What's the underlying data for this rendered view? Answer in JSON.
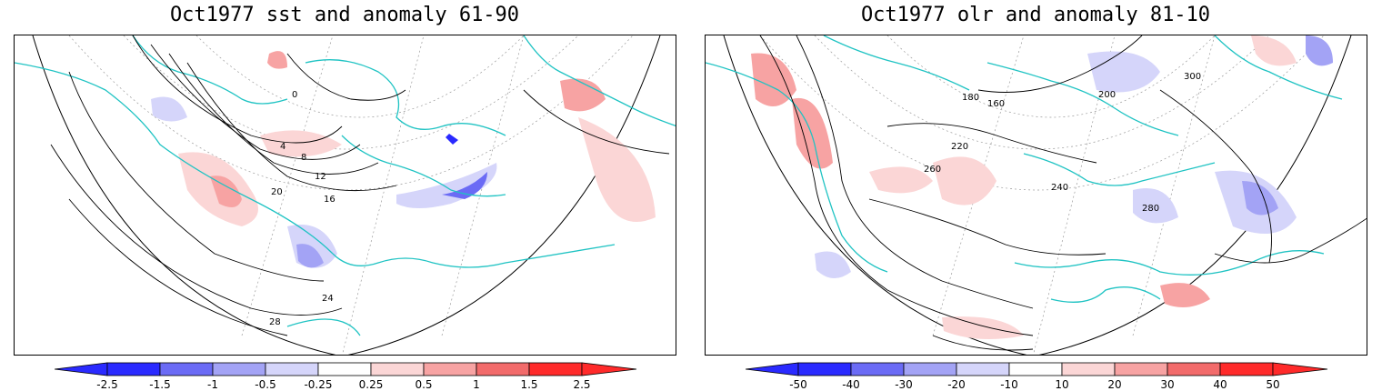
{
  "panels": {
    "left": {
      "title": "Oct1977 sst and anomaly 61-90",
      "contour_labels": [
        "0",
        "4",
        "8",
        "12",
        "16",
        "20",
        "24",
        "28"
      ],
      "colorbar_ticks": [
        "-2.5",
        "-1.5",
        "-1",
        "-0.5",
        "-0.25",
        "0.25",
        "0.5",
        "1",
        "1.5",
        "2.5"
      ]
    },
    "right": {
      "title": "Oct1977 olr and anomaly 81-10",
      "contour_labels": [
        "160",
        "180",
        "200",
        "220",
        "240",
        "260",
        "280",
        "300"
      ],
      "colorbar_ticks": [
        "-50",
        "-40",
        "-30",
        "-20",
        "-10",
        "10",
        "20",
        "30",
        "40",
        "50"
      ]
    }
  },
  "colors": {
    "coastline": "#1fc3c3",
    "neg_fills": [
      "#2a2aff",
      "#6b6bf5",
      "#a3a3f5",
      "#d5d5fa"
    ],
    "pos_fills": [
      "#fbd6d6",
      "#f7a3a3",
      "#f26b6b",
      "#ff2a2a"
    ],
    "contour": "#000000",
    "gridline": "#9a9a9a"
  }
}
